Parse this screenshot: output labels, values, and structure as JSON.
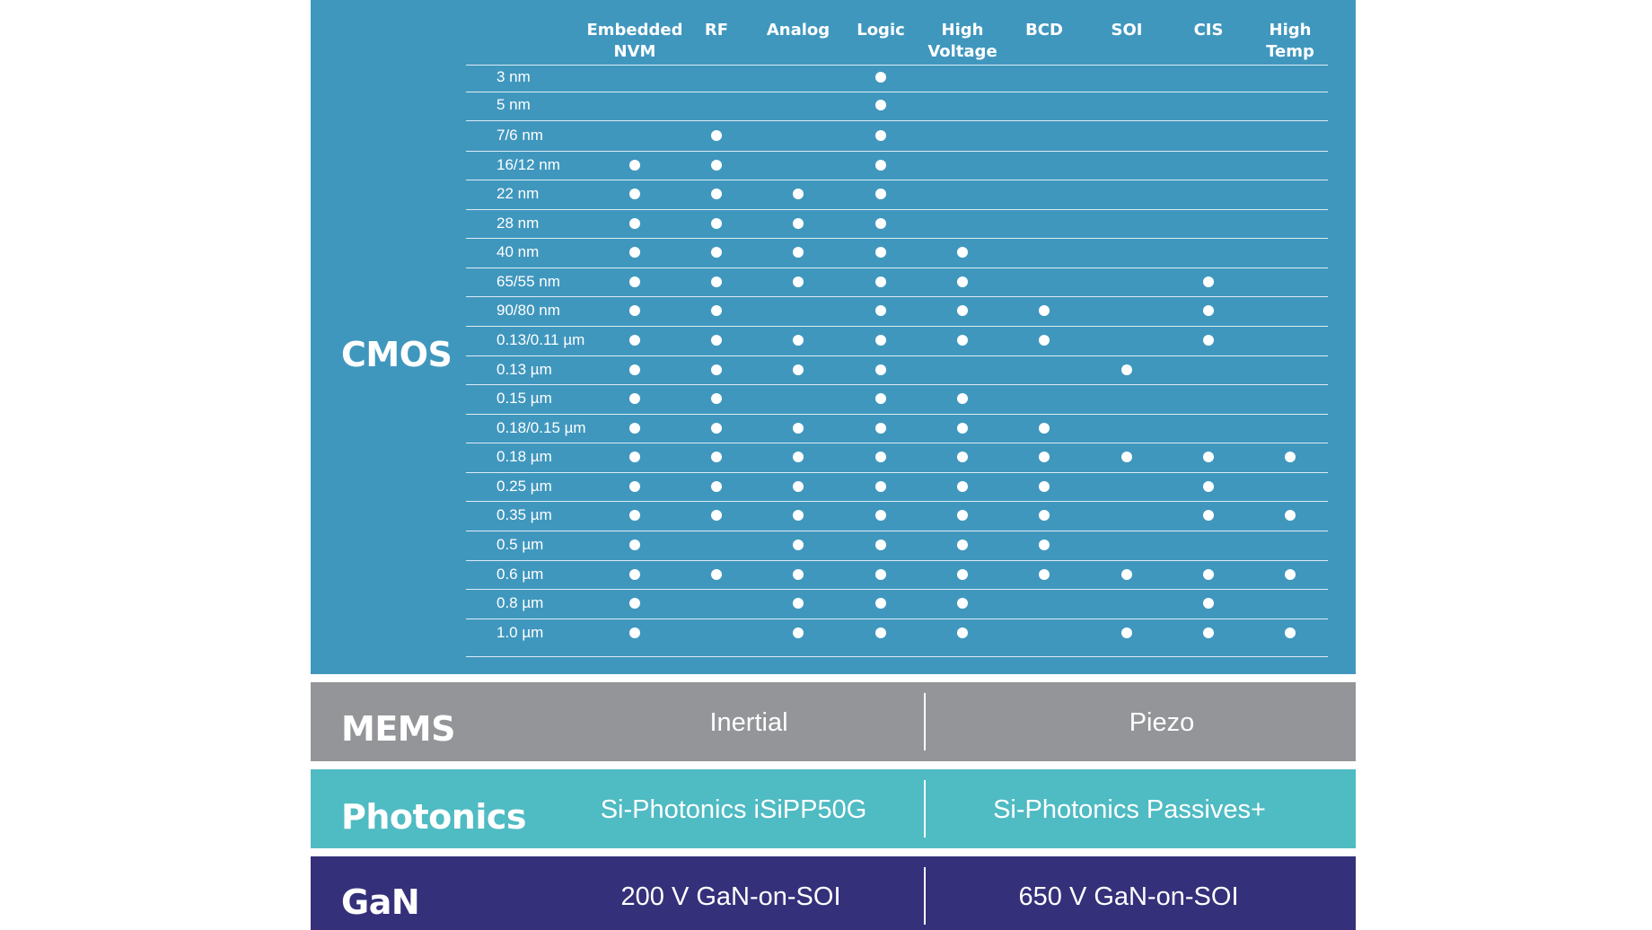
{
  "cmos": {
    "title": "CMOS",
    "columns": [
      [
        "Embedded",
        "NVM"
      ],
      [
        "RF"
      ],
      [
        "Analog"
      ],
      [
        "Logic"
      ],
      [
        "High",
        "Voltage"
      ],
      [
        "BCD"
      ],
      [
        "SOI"
      ],
      [
        "CIS"
      ],
      [
        "High",
        "Temp"
      ]
    ],
    "rows": [
      {
        "label": "3 nm",
        "marks": [
          0,
          0,
          0,
          1,
          0,
          0,
          0,
          0,
          0
        ]
      },
      {
        "label": "5 nm",
        "marks": [
          0,
          0,
          0,
          1,
          0,
          0,
          0,
          0,
          0
        ]
      },
      {
        "label": "7/6 nm",
        "marks": [
          0,
          1,
          0,
          1,
          0,
          0,
          0,
          0,
          0
        ]
      },
      {
        "label": "16/12 nm",
        "marks": [
          1,
          1,
          0,
          1,
          0,
          0,
          0,
          0,
          0
        ]
      },
      {
        "label": "22 nm",
        "marks": [
          1,
          1,
          1,
          1,
          0,
          0,
          0,
          0,
          0
        ]
      },
      {
        "label": "28 nm",
        "marks": [
          1,
          1,
          1,
          1,
          0,
          0,
          0,
          0,
          0
        ]
      },
      {
        "label": "40 nm",
        "marks": [
          1,
          1,
          1,
          1,
          1,
          0,
          0,
          0,
          0
        ]
      },
      {
        "label": "65/55 nm",
        "marks": [
          1,
          1,
          1,
          1,
          1,
          0,
          0,
          1,
          0
        ]
      },
      {
        "label": "90/80 nm",
        "marks": [
          1,
          1,
          0,
          1,
          1,
          1,
          0,
          1,
          0
        ]
      },
      {
        "label": "0.13/0.11 µm",
        "marks": [
          1,
          1,
          1,
          1,
          1,
          1,
          0,
          1,
          0
        ]
      },
      {
        "label": "0.13 µm",
        "marks": [
          1,
          1,
          1,
          1,
          0,
          0,
          1,
          0,
          0
        ]
      },
      {
        "label": "0.15 µm",
        "marks": [
          1,
          1,
          0,
          1,
          1,
          0,
          0,
          0,
          0
        ]
      },
      {
        "label": "0.18/0.15 µm",
        "marks": [
          1,
          1,
          1,
          1,
          1,
          1,
          0,
          0,
          0
        ]
      },
      {
        "label": "0.18 µm",
        "marks": [
          1,
          1,
          1,
          1,
          1,
          1,
          1,
          1,
          1
        ]
      },
      {
        "label": "0.25 µm",
        "marks": [
          1,
          1,
          1,
          1,
          1,
          1,
          0,
          1,
          0
        ]
      },
      {
        "label": "0.35 µm",
        "marks": [
          1,
          1,
          1,
          1,
          1,
          1,
          0,
          1,
          1
        ]
      },
      {
        "label": "0.5 µm",
        "marks": [
          1,
          0,
          1,
          1,
          1,
          1,
          0,
          0,
          0
        ]
      },
      {
        "label": "0.6 µm",
        "marks": [
          1,
          1,
          1,
          1,
          1,
          1,
          1,
          1,
          1
        ]
      },
      {
        "label": "0.8 µm",
        "marks": [
          1,
          0,
          1,
          1,
          1,
          0,
          0,
          1,
          0
        ]
      },
      {
        "label": "1.0 µm",
        "marks": [
          1,
          0,
          1,
          1,
          1,
          0,
          1,
          1,
          1
        ]
      }
    ]
  },
  "mems": {
    "title": "MEMS",
    "left": "Inertial",
    "right": "Piezo"
  },
  "photonics": {
    "title": "Photonics",
    "left": "Si-Photonics iSiPP50G",
    "right": "Si-Photonics Passives+"
  },
  "gan": {
    "title": "GaN",
    "left": "200 V GaN-on-SOI",
    "right": "650 V GaN-on-SOI"
  },
  "colors": {
    "cmos": "#4097be",
    "mems": "#939598",
    "photonics": "#4fbbc3",
    "gan": "#35307a"
  }
}
